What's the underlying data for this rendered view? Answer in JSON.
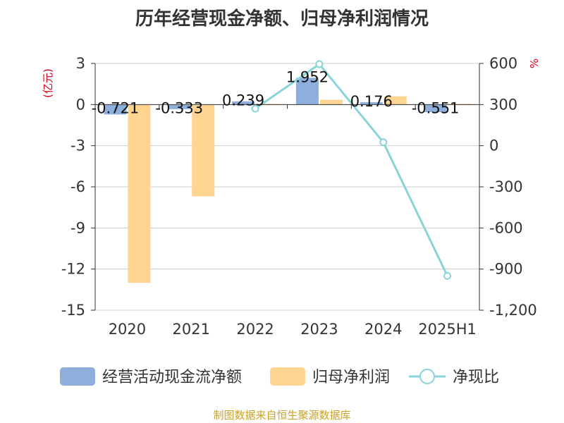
{
  "title": "历年经营现金净额、归母净利润情况",
  "source": "制图数据来自恒生聚源数据库",
  "chart_data": {
    "type": "bar",
    "title": "历年经营现金净额、归母净利润情况",
    "categories": [
      "2020",
      "2021",
      "2022",
      "2023",
      "2024",
      "2025H1"
    ],
    "series": [
      {
        "name": "经营活动现金流净额",
        "type": "bar",
        "axis": "left",
        "color": "#8eafdc",
        "values": [
          -0.721,
          -0.333,
          0.239,
          1.952,
          0.176,
          -0.551
        ]
      },
      {
        "name": "归母净利润",
        "type": "bar",
        "axis": "left",
        "color": "#ffd591",
        "values": [
          -13.0,
          -6.7,
          0.05,
          0.35,
          0.6,
          0.05
        ]
      },
      {
        "name": "净现比",
        "type": "line",
        "axis": "right",
        "color": "#88d4d8",
        "values": [
          null,
          null,
          270,
          595,
          25,
          -950
        ]
      }
    ],
    "data_labels": [
      "-0.721",
      "-0.333",
      "0.239",
      "1.952",
      "0.176",
      "-0.551"
    ],
    "y_left": {
      "label": "(亿元)",
      "ylim": [
        -15,
        3
      ],
      "ticks": [
        3,
        0,
        -3,
        -6,
        -9,
        -12,
        -15
      ]
    },
    "y_right": {
      "label": "%",
      "ylim": [
        -1200,
        600
      ],
      "ticks": [
        600,
        300,
        0,
        -300,
        -600,
        -900,
        -1200
      ],
      "tick_labels": [
        "600",
        "300",
        "0",
        "-300",
        "-600",
        "-900",
        "-1,200"
      ]
    },
    "grid": true,
    "legend_position": "bottom"
  }
}
